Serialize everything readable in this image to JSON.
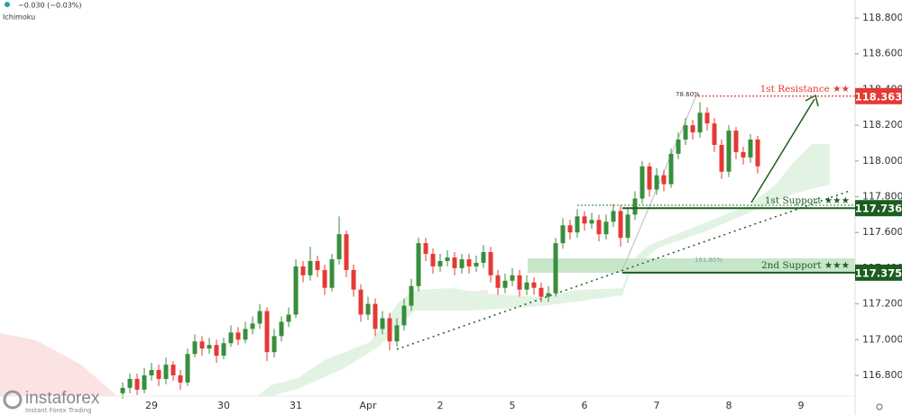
{
  "chart_data": {
    "type": "candlestick",
    "header_change": "−0.030 (−0.03%)",
    "indicator": "Ichimoku",
    "brand": "instaforex",
    "tagline": "Instant Forex Trading",
    "fib_labels": [
      "78.60%",
      "161.80%"
    ],
    "up_color": "#388e3c",
    "down_color": "#e53935",
    "categories": [
      null,
      null,
      null,
      null,
      null,
      null,
      null,
      null,
      null,
      null,
      null,
      null,
      null,
      null,
      null,
      null,
      null,
      null,
      null,
      null,
      "29",
      null,
      null,
      null,
      null,
      null,
      null,
      null,
      null,
      null,
      "30",
      null,
      null,
      null,
      null,
      null,
      null,
      null,
      null,
      null,
      "31",
      null,
      null,
      null,
      null,
      null,
      null,
      null,
      null,
      null,
      "Apr",
      null,
      null,
      null,
      null,
      null,
      null,
      null,
      null,
      null,
      "2",
      null,
      null,
      null,
      null,
      null,
      null,
      null,
      null,
      null,
      "5",
      null,
      null,
      null,
      null,
      null,
      null,
      null,
      null,
      null,
      "6",
      null,
      null,
      null,
      null,
      null,
      null,
      null,
      null,
      null,
      "7",
      null,
      null,
      null,
      null,
      null,
      null,
      null,
      null,
      null,
      "8",
      null,
      null,
      null,
      null,
      null,
      null,
      null,
      null,
      null,
      "9"
    ],
    "open": [
      null,
      null,
      null,
      null,
      null,
      null,
      null,
      null,
      null,
      null,
      null,
      null,
      null,
      null,
      null,
      null,
      116.7,
      116.73,
      116.78,
      116.72,
      116.8,
      116.83,
      116.78,
      116.86,
      116.8,
      116.76,
      116.92,
      116.99,
      116.95,
      116.97,
      116.91,
      116.98,
      117.04,
      117.0,
      117.06,
      117.09,
      117.16,
      116.93,
      117.02,
      117.1,
      117.14,
      117.41,
      117.36,
      117.44,
      117.39,
      117.29,
      117.45,
      117.59,
      117.39,
      117.28,
      117.14,
      117.2,
      117.06,
      117.12,
      116.99,
      117.08,
      117.19,
      117.3,
      117.54,
      117.48,
      117.41,
      117.44,
      117.46,
      117.4,
      117.45,
      117.41,
      117.43,
      117.49,
      117.36,
      117.29,
      117.33,
      117.36,
      117.28,
      117.32,
      117.29,
      117.24,
      117.26,
      117.54,
      117.64,
      117.6,
      117.69,
      117.65,
      117.67,
      117.59,
      117.66,
      117.72,
      117.57,
      117.7,
      117.79,
      117.97,
      117.84,
      117.92,
      117.87,
      118.04,
      118.12,
      118.2,
      118.16,
      118.27,
      118.21,
      118.09,
      117.94,
      118.17,
      118.05,
      118.02,
      118.12,
      null,
      null,
      null,
      null,
      null,
      null
    ],
    "high": [
      null,
      null,
      null,
      null,
      null,
      null,
      null,
      null,
      null,
      null,
      null,
      null,
      null,
      null,
      null,
      null,
      116.76,
      116.81,
      116.81,
      116.84,
      116.87,
      116.86,
      116.9,
      116.88,
      116.83,
      116.95,
      117.03,
      117.02,
      117.01,
      117.0,
      117.01,
      117.08,
      117.07,
      117.1,
      117.13,
      117.2,
      117.18,
      117.06,
      117.13,
      117.18,
      117.45,
      117.44,
      117.52,
      117.47,
      117.42,
      117.48,
      117.69,
      117.61,
      117.42,
      117.31,
      117.24,
      117.23,
      117.16,
      117.15,
      117.12,
      117.23,
      117.34,
      117.57,
      117.57,
      117.51,
      117.48,
      117.5,
      117.49,
      117.48,
      117.48,
      117.47,
      117.53,
      117.52,
      117.39,
      117.37,
      117.4,
      117.39,
      117.36,
      117.35,
      117.32,
      117.3,
      117.57,
      117.68,
      117.67,
      117.73,
      117.72,
      117.71,
      117.7,
      117.7,
      117.76,
      117.75,
      117.74,
      117.83,
      118.0,
      117.99,
      117.96,
      117.95,
      118.07,
      118.16,
      118.24,
      118.23,
      118.33,
      118.3,
      118.24,
      118.12,
      118.2,
      118.19,
      118.08,
      118.15,
      118.14,
      null,
      null,
      null,
      null,
      null,
      null
    ],
    "low": [
      null,
      null,
      null,
      null,
      null,
      null,
      null,
      null,
      null,
      null,
      null,
      null,
      null,
      null,
      null,
      null,
      116.67,
      116.7,
      116.69,
      116.7,
      116.77,
      116.74,
      116.75,
      116.77,
      116.72,
      116.74,
      116.9,
      116.91,
      116.92,
      116.87,
      116.89,
      116.96,
      116.97,
      116.98,
      117.03,
      117.06,
      116.88,
      116.9,
      116.99,
      117.07,
      117.12,
      117.32,
      117.33,
      117.35,
      117.25,
      117.27,
      117.42,
      117.35,
      117.24,
      117.1,
      117.11,
      117.02,
      117.03,
      116.94,
      116.96,
      117.05,
      117.16,
      117.27,
      117.44,
      117.37,
      117.38,
      117.41,
      117.36,
      117.37,
      117.37,
      117.38,
      117.4,
      117.32,
      117.25,
      117.26,
      117.3,
      117.24,
      117.25,
      117.25,
      117.21,
      117.21,
      117.24,
      117.51,
      117.56,
      117.57,
      117.61,
      117.62,
      117.55,
      117.56,
      117.63,
      117.52,
      117.54,
      117.67,
      117.76,
      117.8,
      117.81,
      117.83,
      117.85,
      118.01,
      118.09,
      118.12,
      118.13,
      118.17,
      118.05,
      117.9,
      117.91,
      118.01,
      117.98,
      117.99,
      117.93,
      null,
      null,
      null,
      null,
      null,
      null
    ],
    "close": [
      null,
      null,
      null,
      null,
      null,
      null,
      null,
      null,
      null,
      null,
      null,
      null,
      null,
      null,
      null,
      null,
      116.73,
      116.78,
      116.72,
      116.8,
      116.83,
      116.78,
      116.86,
      116.8,
      116.76,
      116.92,
      116.99,
      116.95,
      116.97,
      116.91,
      116.98,
      117.04,
      117.0,
      117.06,
      117.09,
      117.16,
      116.93,
      117.02,
      117.1,
      117.14,
      117.41,
      117.36,
      117.44,
      117.39,
      117.29,
      117.45,
      117.59,
      117.39,
      117.28,
      117.14,
      117.2,
      117.06,
      117.12,
      116.99,
      117.08,
      117.19,
      117.3,
      117.54,
      117.48,
      117.41,
      117.44,
      117.46,
      117.4,
      117.45,
      117.41,
      117.43,
      117.49,
      117.36,
      117.29,
      117.33,
      117.36,
      117.28,
      117.32,
      117.29,
      117.24,
      117.26,
      117.54,
      117.64,
      117.6,
      117.69,
      117.65,
      117.67,
      117.59,
      117.66,
      117.72,
      117.57,
      117.7,
      117.79,
      117.97,
      117.84,
      117.92,
      117.87,
      118.04,
      118.12,
      118.2,
      118.16,
      118.27,
      118.21,
      118.09,
      117.94,
      118.17,
      118.05,
      118.02,
      118.12,
      117.97,
      null,
      null,
      null,
      null,
      null,
      null
    ],
    "ylim": [
      116.684,
      118.901
    ],
    "yticks": [
      {
        "value": 116.8,
        "label": "116.800"
      },
      {
        "value": 117.0,
        "label": "117.000"
      },
      {
        "value": 117.2,
        "label": "117.200"
      },
      {
        "value": 117.4,
        "label": "117.400"
      },
      {
        "value": 117.6,
        "label": "117.600"
      },
      {
        "value": 117.8,
        "label": "117.800"
      },
      {
        "value": 118.0,
        "label": "118.000"
      },
      {
        "value": 118.2,
        "label": "118.200"
      },
      {
        "value": 118.4,
        "label": "118.400"
      },
      {
        "value": 118.6,
        "label": "118.600"
      },
      {
        "value": 118.8,
        "label": "118.800"
      }
    ],
    "grid": false,
    "levels": [
      {
        "name": "1st Resistance ★★",
        "value": 118.363,
        "color": "#e53935",
        "style": "dotted"
      },
      {
        "name": "1st Support ★★★",
        "value": 117.736,
        "color": "#1b5e20",
        "style": "solid"
      },
      {
        "name": "2nd Support ★★★",
        "value": 117.375,
        "color": "#1b5e20",
        "style": "solid"
      }
    ]
  }
}
